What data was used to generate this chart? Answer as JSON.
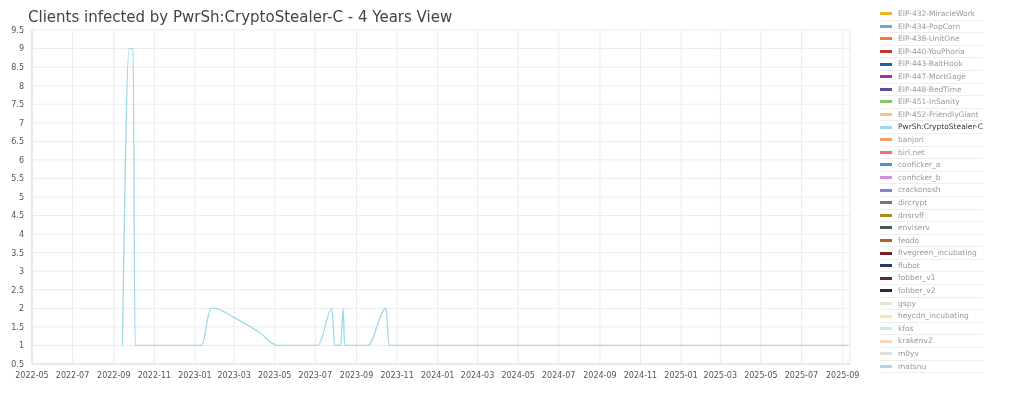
{
  "chart_data": {
    "type": "line",
    "title": "Clients infected by PwrSh:CryptoStealer-C - 4 Years View",
    "xlim": [
      "2022-05-01",
      "2025-09-12"
    ],
    "xticks": [
      "2022-05",
      "2022-07",
      "2022-09",
      "2022-11",
      "2023-01",
      "2023-03",
      "2023-05",
      "2023-07",
      "2023-09",
      "2023-11",
      "2024-01",
      "2024-03",
      "2024-05",
      "2024-07",
      "2024-09",
      "2024-11",
      "2025-01",
      "2025-03",
      "2025-05",
      "2025-07",
      "2025-09"
    ],
    "ylim": [
      0.5,
      9.5
    ],
    "yticks": [
      0.5,
      1,
      1.5,
      2,
      2.5,
      3,
      3.5,
      4,
      4.5,
      5,
      5.5,
      6,
      6.5,
      7,
      7.5,
      8,
      8.5,
      9,
      9.5
    ],
    "grid": true,
    "legend": "right",
    "marker": "none",
    "line_style": "solid",
    "series": [
      {
        "name": "EIP-432-MiracleWork",
        "color": "#f0b429"
      },
      {
        "name": "EIP-434-PopCorn",
        "color": "#6aaed6"
      },
      {
        "name": "EIP-438-UnitOne",
        "color": "#f07c30"
      },
      {
        "name": "EIP-440-YouPhoria",
        "color": "#c0392b"
      },
      {
        "name": "EIP-443-BaitHook",
        "color": "#1f5fa8"
      },
      {
        "name": "EIP-447-MortGage",
        "color": "#9b3a9b"
      },
      {
        "name": "EIP-448-BedTime",
        "color": "#5a4e9a"
      },
      {
        "name": "EIP-451-InSanity",
        "color": "#8cc06a"
      },
      {
        "name": "EIP-452-FriendlyGiant",
        "color": "#f5c27a"
      },
      {
        "name": "PwrSh:CryptoStealer-C",
        "color": "#9fd8ea",
        "x": [
          "2022-09-14",
          "2022-09-24",
          "2022-09-30",
          "2022-10-03",
          "2023-01-11",
          "2023-01-25",
          "2023-01-30",
          "2023-03-01",
          "2023-04-08",
          "2023-05-05",
          "2023-07-05",
          "2023-07-26",
          "2023-07-30",
          "2023-08-08",
          "2023-08-12",
          "2023-08-14",
          "2023-09-18",
          "2023-10-15",
          "2023-10-20",
          "2025-09-10"
        ],
        "values": [
          1,
          9,
          9,
          1,
          1,
          2,
          2,
          1.75,
          1.35,
          1,
          1,
          2,
          1,
          1,
          2,
          1,
          1,
          2,
          1,
          1
        ]
      },
      {
        "name": "banjori",
        "color": "#f4a06a"
      },
      {
        "name": "birl.net",
        "color": "#f26d6d"
      },
      {
        "name": "conficker_a",
        "color": "#4a90d9"
      },
      {
        "name": "conficker_b",
        "color": "#d38fd8"
      },
      {
        "name": "crackonosh",
        "color": "#8a7fd0"
      },
      {
        "name": "dircrypt",
        "color": "#6d7d6a"
      },
      {
        "name": "dnsrvff",
        "color": "#a88a20"
      },
      {
        "name": "enviserv",
        "color": "#4a5a5a"
      },
      {
        "name": "feodo",
        "color": "#b8601f"
      },
      {
        "name": "fivegreen_incubating",
        "color": "#7a1f1f"
      },
      {
        "name": "flubot",
        "color": "#2a3a5a"
      },
      {
        "name": "fobber_v1",
        "color": "#6a1f4a"
      },
      {
        "name": "fobber_v2",
        "color": "#2a2a3a"
      },
      {
        "name": "gspy",
        "color": "#d8eecc"
      },
      {
        "name": "heycdn_incubating",
        "color": "#f8e8b0"
      },
      {
        "name": "kfos",
        "color": "#c8eef0"
      },
      {
        "name": "krakenv2",
        "color": "#f8d8c0"
      },
      {
        "name": "m0yv",
        "color": "#e0e0d8"
      },
      {
        "name": "matsnu",
        "color": "#a8d8f0"
      }
    ]
  }
}
